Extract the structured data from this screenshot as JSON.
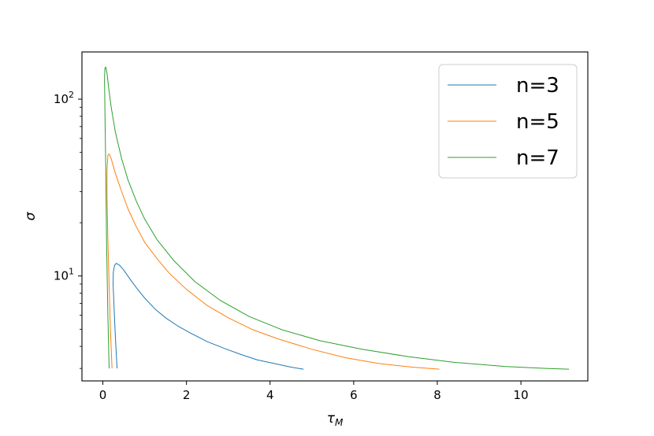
{
  "chart_data": {
    "type": "line",
    "title": "",
    "xlabel": "τ",
    "xlabel_sub": "M",
    "ylabel": "σ",
    "xlim": [
      -0.5,
      11.6
    ],
    "ylim": [
      2.55,
      185
    ],
    "yscale": "log",
    "grid": false,
    "legend_position": "top-right",
    "x_ticks": [
      0,
      2,
      4,
      6,
      8,
      10
    ],
    "x_tick_labels": [
      "0",
      "2",
      "4",
      "6",
      "8",
      "10"
    ],
    "y_ticks": [
      10,
      100
    ],
    "y_tick_base": "10",
    "y_tick_exponents": [
      "1",
      "2"
    ],
    "series": [
      {
        "name": "n=3",
        "color": "#1f77b4",
        "x": [
          0.34,
          0.3,
          0.27,
          0.245,
          0.25,
          0.28,
          0.32,
          0.4,
          0.5,
          0.65,
          0.8,
          1.0,
          1.25,
          1.5,
          1.8,
          2.1,
          2.5,
          2.9,
          3.3,
          3.7,
          4.1,
          4.5,
          4.8
        ],
        "y": [
          3.0,
          4.5,
          6.5,
          9.0,
          10.5,
          11.5,
          11.8,
          11.5,
          10.8,
          9.6,
          8.6,
          7.5,
          6.5,
          5.8,
          5.2,
          4.75,
          4.25,
          3.9,
          3.6,
          3.35,
          3.2,
          3.05,
          2.97
        ]
      },
      {
        "name": "n=5",
        "color": "#ff7f0e",
        "x": [
          0.22,
          0.18,
          0.15,
          0.12,
          0.1,
          0.1,
          0.12,
          0.15,
          0.2,
          0.3,
          0.45,
          0.6,
          0.8,
          1.0,
          1.3,
          1.6,
          2.0,
          2.5,
          3.0,
          3.6,
          4.2,
          5.0,
          5.8,
          6.6,
          7.4,
          8.05
        ],
        "y": [
          3.0,
          5.0,
          9.0,
          16.0,
          28.0,
          40.0,
          48.0,
          49.0,
          46.0,
          38.0,
          30.0,
          24.0,
          19.0,
          15.5,
          12.5,
          10.3,
          8.4,
          6.8,
          5.8,
          4.95,
          4.4,
          3.85,
          3.45,
          3.2,
          3.05,
          2.97
        ]
      },
      {
        "name": "n=7",
        "color": "#2ca02c",
        "x": [
          0.15,
          0.12,
          0.09,
          0.07,
          0.05,
          0.04,
          0.05,
          0.07,
          0.1,
          0.15,
          0.2,
          0.3,
          0.45,
          0.6,
          0.8,
          1.0,
          1.3,
          1.7,
          2.2,
          2.8,
          3.5,
          4.3,
          5.2,
          6.2,
          7.3,
          8.4,
          9.6,
          10.6,
          11.15
        ],
        "y": [
          3.0,
          6.0,
          15.0,
          40.0,
          85.0,
          130.0,
          150.0,
          152.0,
          140.0,
          110.0,
          90.0,
          65.0,
          46.0,
          35.0,
          26.5,
          21.0,
          16.0,
          12.2,
          9.3,
          7.3,
          5.9,
          4.95,
          4.3,
          3.85,
          3.5,
          3.25,
          3.08,
          3.0,
          2.97
        ]
      }
    ]
  }
}
